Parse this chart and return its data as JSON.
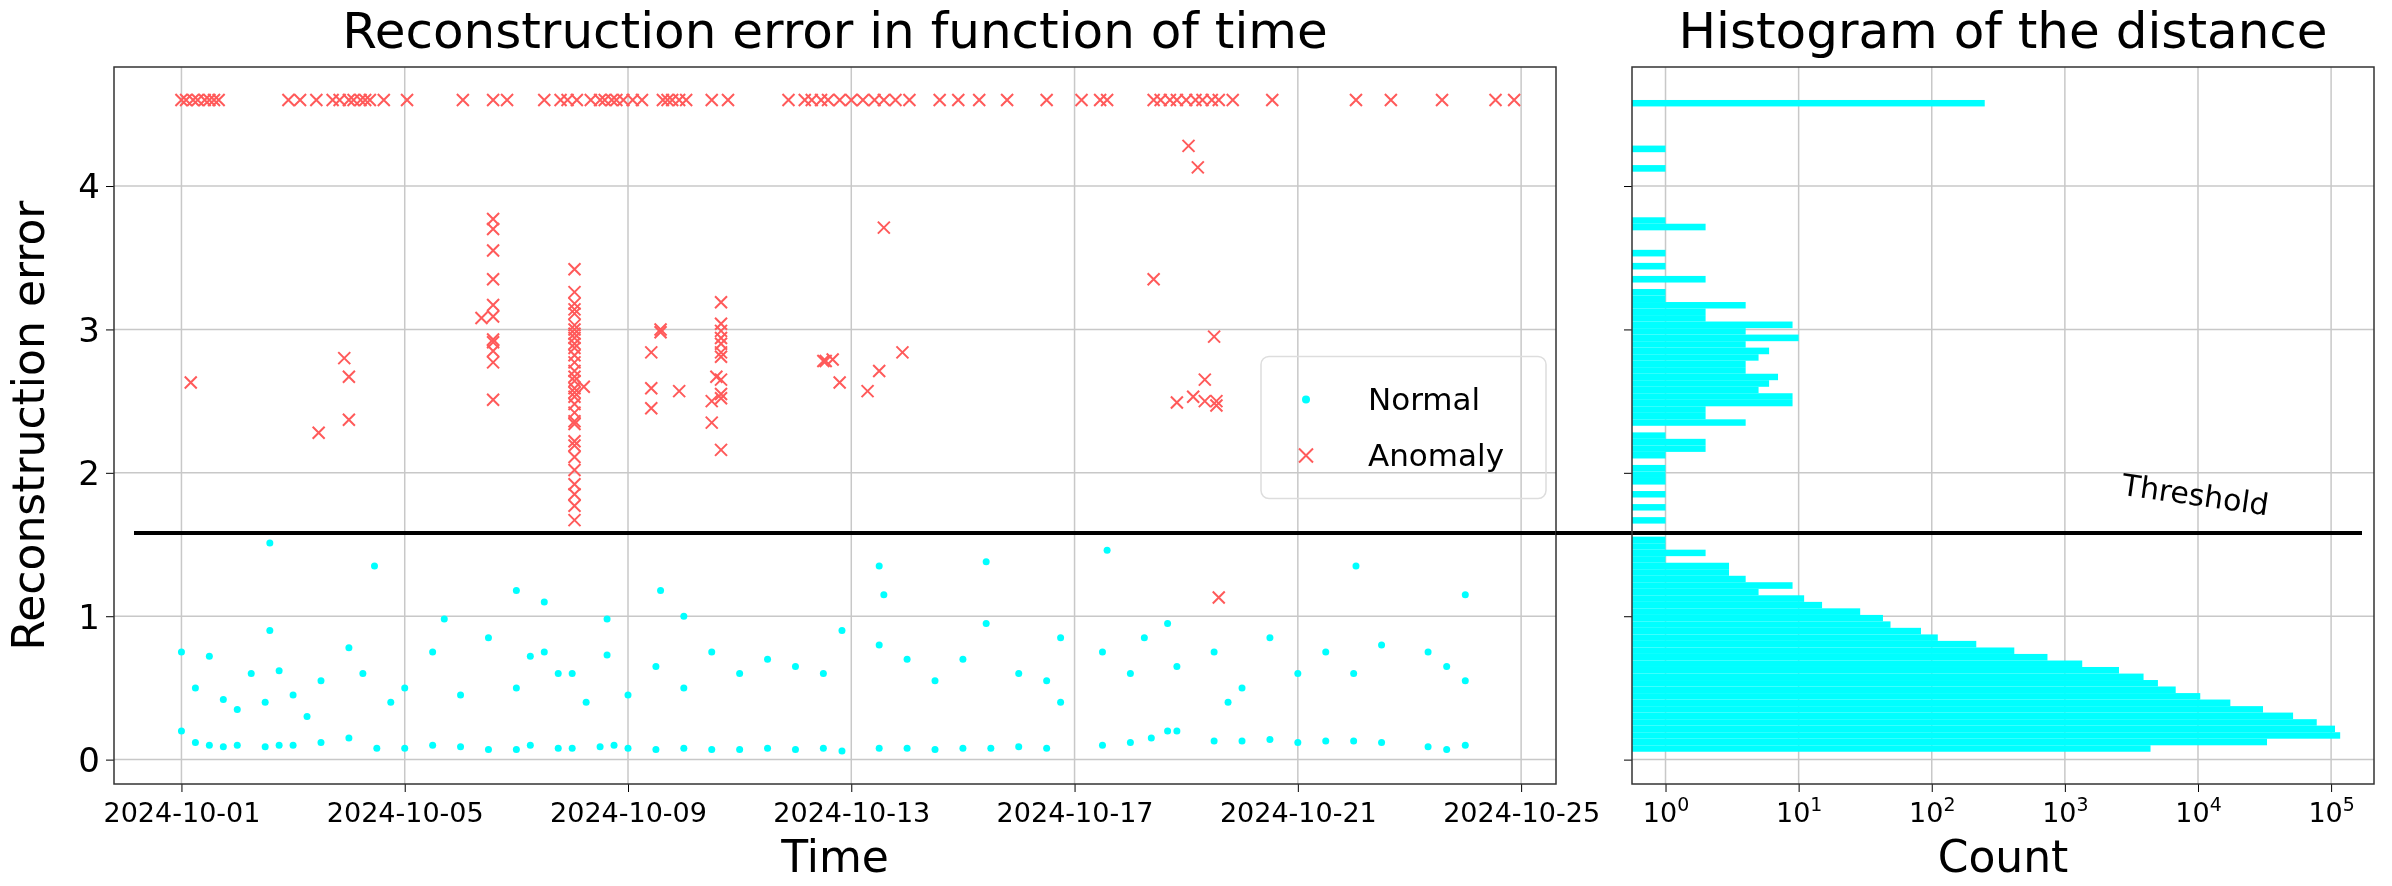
{
  "chart_data": [
    {
      "type": "scatter",
      "title": "Reconstruction error in function of time",
      "xlabel": "Time",
      "ylabel": "Reconstruction error",
      "legend": "center right",
      "grid": true,
      "xlim": [
        "2024-09-29T19:00",
        "2024-10-25T15:00"
      ],
      "xticks": [
        "2024-10-01",
        "2024-10-05",
        "2024-10-09",
        "2024-10-13",
        "2024-10-17",
        "2024-10-21",
        "2024-10-25"
      ],
      "ylim": [
        -0.17,
        4.83
      ],
      "yticks": [
        0,
        1,
        2,
        3,
        4
      ],
      "ref_lines": [
        {
          "axis": "y",
          "value": 1.58,
          "color": "#000000"
        }
      ],
      "series": [
        {
          "name": "Normal",
          "color": "#00ffff",
          "marker": "circle",
          "x": [
            "2024-10-01T00:00",
            "2024-10-01T00:00",
            "2024-10-01T06:00",
            "2024-10-01T06:00",
            "2024-10-01T12:00",
            "2024-10-01T12:00",
            "2024-10-01T18:00",
            "2024-10-01T18:00",
            "2024-10-02T00:00",
            "2024-10-02T00:00",
            "2024-10-02T06:00",
            "2024-10-02T12:00",
            "2024-10-02T12:00",
            "2024-10-02T14:00",
            "2024-10-02T14:00",
            "2024-10-02T18:00",
            "2024-10-02T18:00",
            "2024-10-03T00:00",
            "2024-10-03T00:00",
            "2024-10-03T06:00",
            "2024-10-03T12:00",
            "2024-10-03T12:00",
            "2024-10-04T00:00",
            "2024-10-04T00:00",
            "2024-10-04T06:00",
            "2024-10-04T11:00",
            "2024-10-04T12:00",
            "2024-10-04T18:00",
            "2024-10-05T00:00",
            "2024-10-05T00:00",
            "2024-10-05T12:00",
            "2024-10-05T12:00",
            "2024-10-05T17:00",
            "2024-10-06T00:00",
            "2024-10-06T00:00",
            "2024-10-06T12:00",
            "2024-10-06T12:00",
            "2024-10-07T00:00",
            "2024-10-07T00:00",
            "2024-10-07T00:00",
            "2024-10-07T06:00",
            "2024-10-07T06:00",
            "2024-10-07T12:00",
            "2024-10-07T12:00",
            "2024-10-07T18:00",
            "2024-10-07T18:00",
            "2024-10-08T00:00",
            "2024-10-08T00:00",
            "2024-10-08T06:00",
            "2024-10-08T12:00",
            "2024-10-08T15:00",
            "2024-10-08T15:00",
            "2024-10-08T18:00",
            "2024-10-09T00:00",
            "2024-10-09T00:00",
            "2024-10-09T12:00",
            "2024-10-09T14:00",
            "2024-10-09T12:00",
            "2024-10-10T00:00",
            "2024-10-10T00:00",
            "2024-10-10T00:00",
            "2024-10-10T12:00",
            "2024-10-10T12:00",
            "2024-10-11T00:00",
            "2024-10-11T00:00",
            "2024-10-11T12:00",
            "2024-10-11T12:00",
            "2024-10-12T00:00",
            "2024-10-12T00:00",
            "2024-10-12T12:00",
            "2024-10-12T12:00",
            "2024-10-12T20:00",
            "2024-10-12T20:00",
            "2024-10-13T12:00",
            "2024-10-13T14:00",
            "2024-10-13T12:00",
            "2024-10-13T12:00",
            "2024-10-14T00:00",
            "2024-10-14T00:00",
            "2024-10-14T12:00",
            "2024-10-14T12:00",
            "2024-10-15T00:00",
            "2024-10-15T00:00",
            "2024-10-15T10:00",
            "2024-10-15T10:00",
            "2024-10-15T12:00",
            "2024-10-16T00:00",
            "2024-10-16T00:00",
            "2024-10-16T12:00",
            "2024-10-16T12:00",
            "2024-10-16T18:00",
            "2024-10-16T18:00",
            "2024-10-17T14:00",
            "2024-10-17T12:00",
            "2024-10-17T12:00",
            "2024-10-18T00:00",
            "2024-10-18T00:00",
            "2024-10-18T06:00",
            "2024-10-18T09:00",
            "2024-10-18T16:00",
            "2024-10-18T16:00",
            "2024-10-18T20:00",
            "2024-10-18T20:00",
            "2024-10-19T12:00",
            "2024-10-19T12:00",
            "2024-10-19T18:00",
            "2024-10-20T00:00",
            "2024-10-20T00:00",
            "2024-10-20T12:00",
            "2024-10-20T12:00",
            "2024-10-21T00:00",
            "2024-10-21T00:00",
            "2024-10-21T12:00",
            "2024-10-21T12:00",
            "2024-10-22T00:00",
            "2024-10-22T00:00",
            "2024-10-22T01:00",
            "2024-10-22T12:00",
            "2024-10-22T12:00",
            "2024-10-23T08:00",
            "2024-10-23T08:00",
            "2024-10-23T16:00",
            "2024-10-23T16:00",
            "2024-10-24T00:00",
            "2024-10-24T00:00",
            "2024-10-24T00:00"
          ],
          "values": [
            0.75,
            0.2,
            0.12,
            0.5,
            0.72,
            0.1,
            0.42,
            0.09,
            0.35,
            0.1,
            0.6,
            0.09,
            0.4,
            1.51,
            0.9,
            0.62,
            0.1,
            0.1,
            0.45,
            0.3,
            0.12,
            0.55,
            0.78,
            0.15,
            0.6,
            1.35,
            0.08,
            0.4,
            0.08,
            0.5,
            0.1,
            0.75,
            0.98,
            0.09,
            0.45,
            0.07,
            0.85,
            0.07,
            0.5,
            1.18,
            0.72,
            0.1,
            1.1,
            0.75,
            0.08,
            0.6,
            0.6,
            0.08,
            0.4,
            0.09,
            0.98,
            0.73,
            0.1,
            0.08,
            0.45,
            0.65,
            1.18,
            0.07,
            1.0,
            0.5,
            0.08,
            0.75,
            0.07,
            0.07,
            0.6,
            0.08,
            0.7,
            0.07,
            0.65,
            0.08,
            0.6,
            0.9,
            0.06,
            1.35,
            1.15,
            0.08,
            0.8,
            0.08,
            0.7,
            0.07,
            0.55,
            0.08,
            0.7,
            1.38,
            0.95,
            0.08,
            0.09,
            0.6,
            0.08,
            0.55,
            0.85,
            0.4,
            1.46,
            0.1,
            0.75,
            0.12,
            0.6,
            0.85,
            0.15,
            0.95,
            0.2,
            0.65,
            0.2,
            0.13,
            0.75,
            0.4,
            0.13,
            0.5,
            0.14,
            0.85,
            0.12,
            0.6,
            0.13,
            0.75,
            0.13,
            0.6,
            1.35,
            0.12,
            0.8,
            0.09,
            0.75,
            0.07,
            0.65,
            0.1,
            1.15,
            0.55
          ]
        },
        {
          "name": "Anomaly",
          "color": "#ff5a5a",
          "marker": "cross",
          "x": [
            "2024-10-01T00:00",
            "2024-10-01T02:00",
            "2024-10-01T05:00",
            "2024-10-01T07:00",
            "2024-10-01T10:00",
            "2024-10-01T12:00",
            "2024-10-01T14:00",
            "2024-10-01T16:00",
            "2024-10-02T22:00",
            "2024-10-03T03:00",
            "2024-10-03T10:00",
            "2024-10-03T17:00",
            "2024-10-03T20:00",
            "2024-10-04T00:00",
            "2024-10-04T02:00",
            "2024-10-04T05:00",
            "2024-10-04T07:00",
            "2024-10-04T09:00",
            "2024-10-04T15:00",
            "2024-10-05T01:00",
            "2024-10-06T01:00",
            "2024-10-06T14:00",
            "2024-10-06T20:00",
            "2024-10-07T12:00",
            "2024-10-07T19:00",
            "2024-10-07T22:00",
            "2024-10-08T02:00",
            "2024-10-08T08:00",
            "2024-10-08T12:00",
            "2024-10-08T14:00",
            "2024-10-08T17:00",
            "2024-10-08T19:00",
            "2024-10-08T22:00",
            "2024-10-09T02:00",
            "2024-10-09T06:00",
            "2024-10-09T15:00",
            "2024-10-09T17:00",
            "2024-10-09T19:00",
            "2024-10-09T22:00",
            "2024-10-10T01:00",
            "2024-10-10T12:00",
            "2024-10-10T19:00",
            "2024-10-11T21:00",
            "2024-10-12T04:00",
            "2024-10-12T07:00",
            "2024-10-12T11:00",
            "2024-10-12T14:00",
            "2024-10-12T19:00",
            "2024-10-13T00:00",
            "2024-10-13T05:00",
            "2024-10-13T10:00",
            "2024-10-13T14:00",
            "2024-10-13T19:00",
            "2024-10-14T01:00",
            "2024-10-14T14:00",
            "2024-10-14T22:00",
            "2024-10-15T07:00",
            "2024-10-15T19:00",
            "2024-10-16T12:00",
            "2024-10-17T03:00",
            "2024-10-17T11:00",
            "2024-10-17T14:00",
            "2024-10-18T10:00",
            "2024-10-18T13:00",
            "2024-10-18T17:00",
            "2024-10-18T20:00",
            "2024-10-19T00:00",
            "2024-10-19T04:00",
            "2024-10-19T07:00",
            "2024-10-19T11:00",
            "2024-10-19T14:00",
            "2024-10-19T20:00",
            "2024-10-20T13:00",
            "2024-10-22T01:00",
            "2024-10-22T16:00",
            "2024-10-23T14:00",
            "2024-10-24T13:00",
            "2024-10-24T21:00",
            "2024-10-01T04:00",
            "2024-10-03T11:00",
            "2024-10-03T22:00",
            "2024-10-04T00:00",
            "2024-10-04T00:00",
            "2024-10-06T09:00",
            "2024-10-06T14:00",
            "2024-10-06T14:00",
            "2024-10-06T14:00",
            "2024-10-06T14:00",
            "2024-10-06T14:00",
            "2024-10-06T14:00",
            "2024-10-06T14:00",
            "2024-10-06T14:00",
            "2024-10-06T14:00",
            "2024-10-06T14:00",
            "2024-10-06T14:00",
            "2024-10-08T01:00",
            "2024-10-08T01:00",
            "2024-10-08T01:00",
            "2024-10-08T01:00",
            "2024-10-08T01:00",
            "2024-10-08T01:00",
            "2024-10-08T01:00",
            "2024-10-08T01:00",
            "2024-10-08T01:00",
            "2024-10-08T01:00",
            "2024-10-08T01:00",
            "2024-10-08T01:00",
            "2024-10-08T01:00",
            "2024-10-08T01:00",
            "2024-10-08T01:00",
            "2024-10-08T01:00",
            "2024-10-08T01:00",
            "2024-10-08T01:00",
            "2024-10-08T01:00",
            "2024-10-08T01:00",
            "2024-10-08T01:00",
            "2024-10-08T01:00",
            "2024-10-08T01:00",
            "2024-10-08T01:00",
            "2024-10-08T01:00",
            "2024-10-08T01:00",
            "2024-10-08T01:00",
            "2024-10-08T01:00",
            "2024-10-08T01:00",
            "2024-10-08T01:00",
            "2024-10-08T01:00",
            "2024-10-08T05:00",
            "2024-10-09T10:00",
            "2024-10-09T10:00",
            "2024-10-09T10:00",
            "2024-10-09T14:00",
            "2024-10-09T14:00",
            "2024-10-09T22:00",
            "2024-10-10T16:00",
            "2024-10-10T16:00",
            "2024-10-10T16:00",
            "2024-10-10T16:00",
            "2024-10-10T16:00",
            "2024-10-10T16:00",
            "2024-10-10T16:00",
            "2024-10-10T16:00",
            "2024-10-10T16:00",
            "2024-10-10T16:00",
            "2024-10-10T16:00",
            "2024-10-10T14:00",
            "2024-10-10T12:00",
            "2024-10-10T12:00",
            "2024-10-12T12:00",
            "2024-10-12T13:00",
            "2024-10-12T16:00",
            "2024-10-12T19:00",
            "2024-10-13T07:00",
            "2024-10-13T12:00",
            "2024-10-13T22:00",
            "2024-10-13T14:00",
            "2024-10-18T10:00",
            "2024-10-19T01:00",
            "2024-10-19T05:00",
            "2024-10-19T12:00",
            "2024-10-19T08:00",
            "2024-10-19T08:00",
            "2024-10-18T20:00",
            "2024-10-19T03:00",
            "2024-10-19T13:00",
            "2024-10-19T13:00",
            "2024-10-19T14:00"
          ],
          "values": [
            4.6,
            4.6,
            4.6,
            4.6,
            4.6,
            4.6,
            4.6,
            4.6,
            4.6,
            4.6,
            4.6,
            4.6,
            4.6,
            4.6,
            4.6,
            4.6,
            4.6,
            4.6,
            4.6,
            4.6,
            4.6,
            4.6,
            4.6,
            4.6,
            4.6,
            4.6,
            4.6,
            4.6,
            4.6,
            4.6,
            4.6,
            4.6,
            4.6,
            4.6,
            4.6,
            4.6,
            4.6,
            4.6,
            4.6,
            4.6,
            4.6,
            4.6,
            4.6,
            4.6,
            4.6,
            4.6,
            4.6,
            4.6,
            4.6,
            4.6,
            4.6,
            4.6,
            4.6,
            4.6,
            4.6,
            4.6,
            4.6,
            4.6,
            4.6,
            4.6,
            4.6,
            4.6,
            4.6,
            4.6,
            4.6,
            4.6,
            4.6,
            4.6,
            4.6,
            4.6,
            4.6,
            4.6,
            4.6,
            4.6,
            4.6,
            4.6,
            4.6,
            4.6,
            2.63,
            2.28,
            2.8,
            2.67,
            2.37,
            3.08,
            3.77,
            3.7,
            3.55,
            3.35,
            3.17,
            3.09,
            2.93,
            2.91,
            2.85,
            2.77,
            2.51,
            3.42,
            3.26,
            3.18,
            3.14,
            3.11,
            3.03,
            3.0,
            2.97,
            2.94,
            2.9,
            2.87,
            2.82,
            2.77,
            2.71,
            2.67,
            2.64,
            2.59,
            2.56,
            2.53,
            2.48,
            2.42,
            2.36,
            2.34,
            2.22,
            2.19,
            2.11,
            2.02,
            1.92,
            1.85,
            1.77,
            1.67,
            2.6,
            2.84,
            2.59,
            2.45,
            3.0,
            2.98,
            2.57,
            3.19,
            3.04,
            2.99,
            2.94,
            2.9,
            2.84,
            2.81,
            2.65,
            2.55,
            2.52,
            2.16,
            2.67,
            2.5,
            2.35,
            2.78,
            2.78,
            2.79,
            2.63,
            2.57,
            2.71,
            2.84,
            3.71,
            3.35,
            4.28,
            4.13,
            2.95,
            2.65,
            2.5,
            2.49,
            2.53,
            2.5,
            2.47,
            1.13
          ]
        }
      ]
    },
    {
      "type": "histogram",
      "title": "Histogram of the distance",
      "xlabel": "Count",
      "orientation": "horizontal",
      "color": "#00ffff",
      "log": "x",
      "grid": true,
      "tick_labels": "x",
      "xlim": [
        0.56,
        210000
      ],
      "xticks": [
        {
          "value": 1,
          "label": "10$^{0}$"
        },
        {
          "value": 10,
          "label": "10$^{1}$"
        },
        {
          "value": 100,
          "label": "10$^{2}$"
        },
        {
          "value": 1000,
          "label": "10$^{3}$"
        },
        {
          "value": 10000,
          "label": "10$^{4}$"
        },
        {
          "value": 100000,
          "label": "10$^{5}$"
        }
      ],
      "ylim": [
        -0.17,
        4.83
      ],
      "yticks": [
        0,
        1,
        2,
        3,
        4
      ],
      "ref_lines": [
        {
          "axis": "y",
          "value": 1.58,
          "label": "Threshold",
          "color": "#000000"
        }
      ],
      "bins": [
        0.055,
        0.1,
        0.146,
        0.191,
        0.237,
        0.282,
        0.328,
        0.373,
        0.419,
        0.464,
        0.51,
        0.555,
        0.6,
        0.646,
        0.691,
        0.737,
        0.782,
        0.828,
        0.873,
        0.919,
        0.964,
        1.009,
        1.055,
        1.1,
        1.146,
        1.191,
        1.237,
        1.282,
        1.328,
        1.373,
        1.419,
        1.464,
        1.509,
        1.555,
        1.6,
        1.646,
        1.691,
        1.737,
        1.782,
        1.828,
        1.873,
        1.918,
        1.964,
        2.009,
        2.055,
        2.1,
        2.146,
        2.191,
        2.237,
        2.282,
        2.328,
        2.373,
        2.418,
        2.464,
        2.509,
        2.555,
        2.6,
        2.646,
        2.691,
        2.737,
        2.782,
        2.827,
        2.873,
        2.918,
        2.964,
        3.009,
        3.055,
        3.1,
        3.146,
        3.191,
        3.237,
        3.282,
        3.327,
        3.373,
        3.418,
        3.464,
        3.509,
        3.555,
        3.6,
        3.646,
        3.691,
        3.737,
        3.782,
        3.827,
        3.873,
        3.918,
        3.964,
        4.009,
        4.055,
        4.1,
        4.146,
        4.191,
        4.236,
        4.282,
        4.327,
        4.373,
        4.418,
        4.464,
        4.509,
        4.555,
        4.6
      ],
      "values": [
        4400,
        33000,
        117000,
        107000,
        78000,
        51800,
        30800,
        17500,
        10400,
        6800,
        5000,
        3900,
        2550,
        1350,
        740,
        417,
        216,
        111,
        83,
        49,
        43,
        29,
        15,
        11,
        5,
        9,
        4,
        3,
        3,
        1,
        2,
        1,
        1,
        null,
        null,
        1,
        null,
        1,
        null,
        1,
        null,
        1,
        1,
        1,
        null,
        1,
        2,
        2,
        1,
        null,
        4,
        2,
        2,
        9,
        9,
        5,
        6,
        7,
        4,
        4,
        5,
        6,
        4,
        10,
        4,
        9,
        2,
        2,
        4,
        1,
        1,
        null,
        2,
        null,
        1,
        null,
        1,
        null,
        null,
        null,
        2,
        1,
        null,
        null,
        null,
        null,
        null,
        null,
        null,
        1,
        null,
        null,
        1,
        null,
        null,
        null,
        null,
        null,
        null,
        250
      ]
    }
  ]
}
